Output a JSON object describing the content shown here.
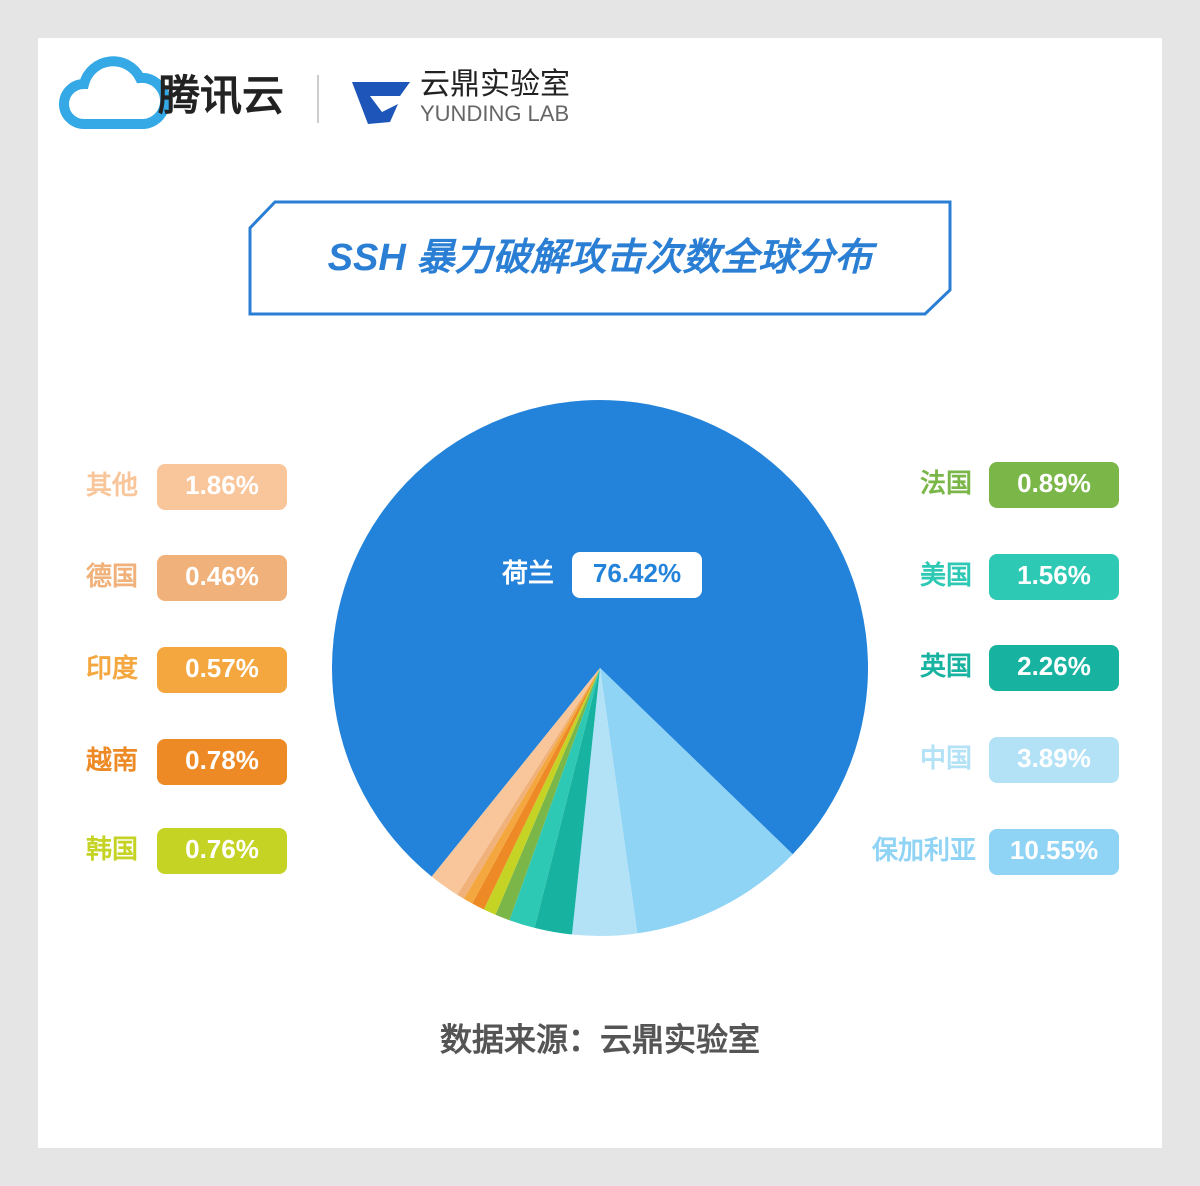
{
  "header": {
    "brand": "腾讯云",
    "lab": "云鼎实验室",
    "lab_en": "YUNDING LAB"
  },
  "chart_data": {
    "type": "pie",
    "title": "SSH 暴力破解攻击次数全球分布",
    "source": "数据来源：云鼎实验室",
    "categories": [
      "荷兰",
      "保加利亚",
      "中国",
      "英国",
      "美国",
      "法国",
      "韩国",
      "越南",
      "印度",
      "德国",
      "其他"
    ],
    "values": [
      76.42,
      10.55,
      3.89,
      2.26,
      1.56,
      0.89,
      0.76,
      0.78,
      0.57,
      0.46,
      1.86
    ],
    "value_labels": [
      "76.42%",
      "10.55%",
      "3.89%",
      "2.26%",
      "1.56%",
      "0.89%",
      "0.76%",
      "0.78%",
      "0.57%",
      "0.46%",
      "1.86%"
    ],
    "colors": [
      "#2383da",
      "#8fd3f5",
      "#b3e2f7",
      "#17b3a0",
      "#2ec9b4",
      "#7ab648",
      "#c5d324",
      "#ee8a26",
      "#f4a73f",
      "#f0b27a",
      "#f9c69b"
    ]
  }
}
